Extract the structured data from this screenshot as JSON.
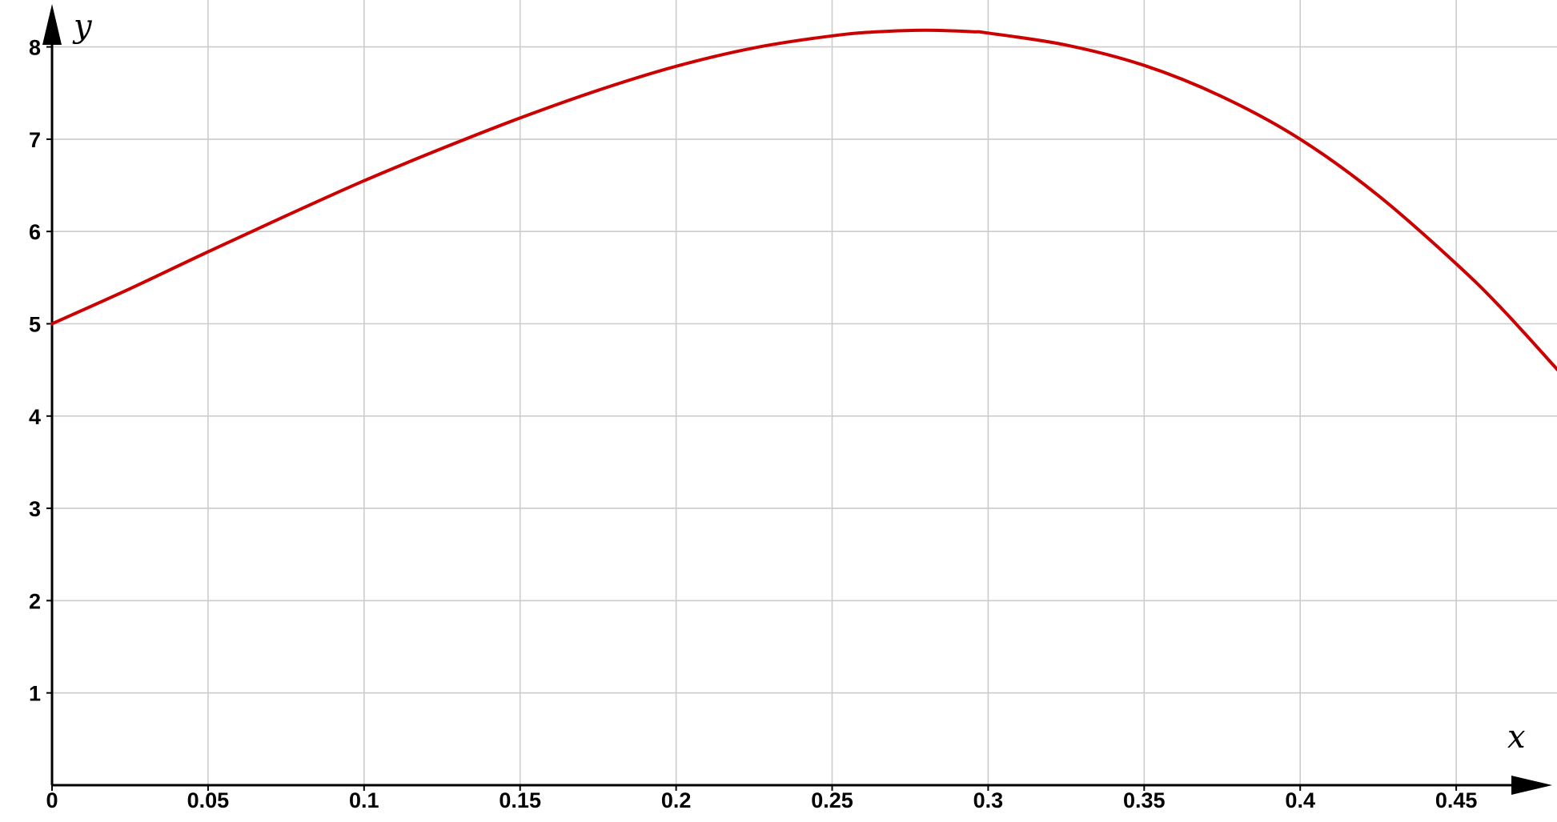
{
  "chart_data": {
    "type": "line",
    "xlabel": "x",
    "ylabel": "y",
    "xlim": [
      0,
      0.48
    ],
    "ylim": [
      0,
      8.4
    ],
    "x_ticks": [
      {
        "value": 0,
        "label": "0"
      },
      {
        "value": 0.05,
        "label": "0.05"
      },
      {
        "value": 0.1,
        "label": "0.1"
      },
      {
        "value": 0.15,
        "label": "0.15"
      },
      {
        "value": 0.2,
        "label": "0.2"
      },
      {
        "value": 0.25,
        "label": "0.25"
      },
      {
        "value": 0.3,
        "label": "0.3"
      },
      {
        "value": 0.35,
        "label": "0.35"
      },
      {
        "value": 0.4,
        "label": "0.4"
      },
      {
        "value": 0.45,
        "label": "0.45"
      }
    ],
    "y_ticks": [
      {
        "value": 1,
        "label": "1"
      },
      {
        "value": 2,
        "label": "2"
      },
      {
        "value": 3,
        "label": "3"
      },
      {
        "value": 4,
        "label": "4"
      },
      {
        "value": 5,
        "label": "5"
      },
      {
        "value": 6,
        "label": "6"
      },
      {
        "value": 7,
        "label": "7"
      },
      {
        "value": 8,
        "label": "8"
      }
    ],
    "grid": true,
    "series": [
      {
        "color": "#cc0000",
        "x": [
          0,
          0.025,
          0.05,
          0.075,
          0.1,
          0.125,
          0.15,
          0.175,
          0.2,
          0.225,
          0.25,
          0.265,
          0.28,
          0.295,
          0.3,
          0.325,
          0.35,
          0.375,
          0.4,
          0.425,
          0.45,
          0.465,
          0.4825
        ],
        "values": [
          5.0,
          5.38,
          5.78,
          6.17,
          6.55,
          6.9,
          7.23,
          7.53,
          7.79,
          7.99,
          8.12,
          8.165,
          8.18,
          8.165,
          8.15,
          8.02,
          7.8,
          7.46,
          7.0,
          6.39,
          5.65,
          5.15,
          4.5
        ]
      }
    ]
  }
}
